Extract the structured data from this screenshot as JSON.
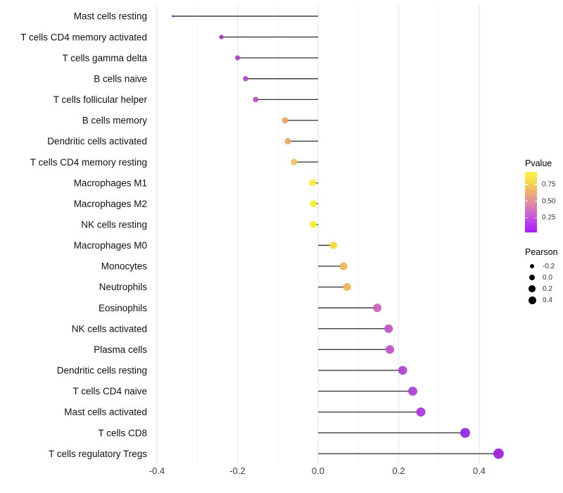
{
  "chart_data": {
    "type": "scatter",
    "variant": "horizontal-lollipop",
    "title": "",
    "xlabel": "",
    "ylabel": "",
    "xlim": [
      -0.4,
      0.486
    ],
    "x_major_ticks": [
      -0.4,
      -0.2,
      0.0,
      0.2,
      0.4
    ],
    "x_major_tick_labels": [
      "-0.4",
      "-0.2",
      "0.0",
      "0.2",
      "0.4"
    ],
    "x_minor_ticks": [
      -0.3,
      -0.1,
      0.1,
      0.3
    ],
    "grid": "vertical major+minor, light gray, white background",
    "stem_color": "#3d3d3d",
    "rows": [
      {
        "label": "Mast cells resting",
        "pearson": -0.36,
        "color": "#6a16cf"
      },
      {
        "label": "T cells CD4 memory activated",
        "pearson": -0.24,
        "color": "#9c36c9"
      },
      {
        "label": "T cells gamma delta",
        "pearson": -0.2,
        "color": "#a73ecb"
      },
      {
        "label": "B cells naive",
        "pearson": -0.18,
        "color": "#b047c7"
      },
      {
        "label": "T cells follicular helper",
        "pearson": -0.155,
        "color": "#ba50c9"
      },
      {
        "label": "B cells memory",
        "pearson": -0.082,
        "color": "#eba566"
      },
      {
        "label": "Dendritic cells activated",
        "pearson": -0.075,
        "color": "#eca768"
      },
      {
        "label": "T cells CD4 memory resting",
        "pearson": -0.06,
        "color": "#f1c25c"
      },
      {
        "label": "Macrophages M1",
        "pearson": -0.013,
        "color": "#f8ed32"
      },
      {
        "label": "Macrophages M2",
        "pearson": -0.012,
        "color": "#f8ed32"
      },
      {
        "label": "NK cells resting",
        "pearson": -0.012,
        "color": "#f8ed32"
      },
      {
        "label": "Macrophages M0",
        "pearson": 0.038,
        "color": "#f5da3c"
      },
      {
        "label": "Monocytes",
        "pearson": 0.063,
        "color": "#f2b656"
      },
      {
        "label": "Neutrophils",
        "pearson": 0.072,
        "color": "#f2b254"
      },
      {
        "label": "Eosinophils",
        "pearson": 0.147,
        "color": "#cb60ba"
      },
      {
        "label": "NK cells activated",
        "pearson": 0.175,
        "color": "#bf52c5"
      },
      {
        "label": "Plasma cells",
        "pearson": 0.178,
        "color": "#be50c7"
      },
      {
        "label": "Dendritic cells resting",
        "pearson": 0.21,
        "color": "#b13ed2"
      },
      {
        "label": "T cells CD4 naive",
        "pearson": 0.235,
        "color": "#ac3bd5"
      },
      {
        "label": "Mast cells activated",
        "pearson": 0.255,
        "color": "#a833d9"
      },
      {
        "label": "T cells CD8",
        "pearson": 0.365,
        "color": "#8f26e1"
      },
      {
        "label": "T cells regulatory  Tregs",
        "pearson": 0.448,
        "color": "#9a1cdb"
      }
    ]
  },
  "legends": {
    "pvalue": {
      "title": "Pvalue",
      "tick_labels": [
        "0.75",
        "0.50",
        "0.25"
      ],
      "gradient_top_to_bottom": [
        "#f9f345",
        "#f8d94f",
        "#eeb06e",
        "#e0909f",
        "#cf6cc9",
        "#b840ea",
        "#a31df6"
      ]
    },
    "pearson": {
      "title": "Pearson",
      "items": [
        {
          "label": "-0.2"
        },
        {
          "label": "0.0"
        },
        {
          "label": "0.2"
        },
        {
          "label": "0.4"
        }
      ],
      "dot_color": "#000000"
    }
  }
}
